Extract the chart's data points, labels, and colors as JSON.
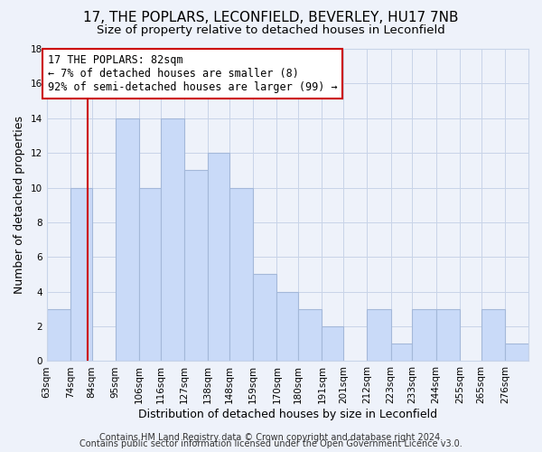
{
  "title": "17, THE POPLARS, LECONFIELD, BEVERLEY, HU17 7NB",
  "subtitle": "Size of property relative to detached houses in Leconfield",
  "xlabel": "Distribution of detached houses by size in Leconfield",
  "ylabel": "Number of detached properties",
  "bin_labels": [
    "63sqm",
    "74sqm",
    "84sqm",
    "95sqm",
    "106sqm",
    "116sqm",
    "127sqm",
    "138sqm",
    "148sqm",
    "159sqm",
    "170sqm",
    "180sqm",
    "191sqm",
    "201sqm",
    "212sqm",
    "223sqm",
    "233sqm",
    "244sqm",
    "255sqm",
    "265sqm",
    "276sqm"
  ],
  "bar_heights": [
    3,
    10,
    0,
    14,
    10,
    14,
    11,
    12,
    10,
    5,
    4,
    3,
    2,
    0,
    3,
    1,
    3,
    3,
    0,
    3,
    1
  ],
  "bin_edges": [
    63,
    74,
    84,
    95,
    106,
    116,
    127,
    138,
    148,
    159,
    170,
    180,
    191,
    201,
    212,
    223,
    233,
    244,
    255,
    265,
    276,
    287
  ],
  "bar_color": "#c9daf8",
  "bar_edge_color": "#a4b8d9",
  "redline_x": 82,
  "redline_color": "#cc0000",
  "annotation_text": "17 THE POPLARS: 82sqm\n← 7% of detached houses are smaller (8)\n92% of semi-detached houses are larger (99) →",
  "annotation_box_color": "#ffffff",
  "annotation_box_edge": "#cc0000",
  "ylim": [
    0,
    18
  ],
  "yticks": [
    0,
    2,
    4,
    6,
    8,
    10,
    12,
    14,
    16,
    18
  ],
  "grid_color": "#c8d4e8",
  "footer_line1": "Contains HM Land Registry data © Crown copyright and database right 2024.",
  "footer_line2": "Contains public sector information licensed under the Open Government Licence v3.0.",
  "title_fontsize": 11,
  "subtitle_fontsize": 9.5,
  "xlabel_fontsize": 9,
  "ylabel_fontsize": 9,
  "tick_fontsize": 7.5,
  "footer_fontsize": 7,
  "annotation_fontsize": 8.5,
  "background_color": "#eef2fa"
}
